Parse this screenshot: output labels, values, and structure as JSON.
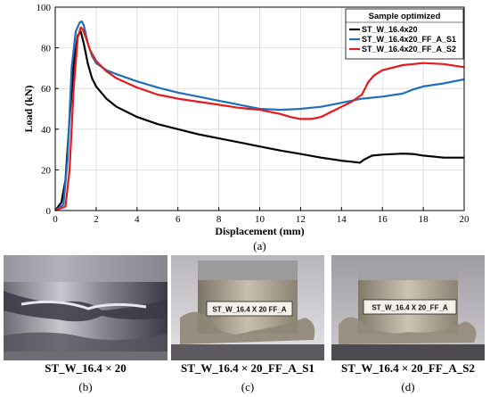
{
  "chart_data": {
    "type": "line",
    "title": "",
    "xlabel": "Displacement (mm)",
    "ylabel": "Load (kN)",
    "xlim": [
      0,
      20
    ],
    "ylim": [
      0,
      100
    ],
    "xticks": [
      "0",
      "2",
      "4",
      "6",
      "8",
      "10",
      "12",
      "14",
      "16",
      "18",
      "20"
    ],
    "yticks": [
      "0",
      "20",
      "40",
      "60",
      "80",
      "100"
    ],
    "grid": true,
    "legend": {
      "title": "Sample optimized",
      "placement": "top-right"
    },
    "series": [
      {
        "name": "ST_W_16.4x20",
        "color": "#000000",
        "x": [
          0,
          0.3,
          0.5,
          0.7,
          0.9,
          1.1,
          1.25,
          1.4,
          1.6,
          1.8,
          2.0,
          2.5,
          3,
          4,
          5,
          6,
          7,
          8,
          9,
          10,
          11,
          12,
          13,
          14,
          14.5,
          14.9,
          15.1,
          15.5,
          16,
          17,
          17.5,
          18,
          19,
          20
        ],
        "y": [
          0,
          4,
          15,
          45,
          72,
          86,
          88,
          82,
          72,
          65,
          61,
          55,
          51,
          46,
          42.5,
          40,
          37.5,
          35.5,
          33.5,
          31.5,
          29.5,
          27.8,
          26,
          24.5,
          24,
          23.5,
          25,
          27,
          27.5,
          28,
          27.8,
          27,
          26,
          26
        ]
      },
      {
        "name": "ST_W_16.4x20_FF_A_S1",
        "color": "#1f6fbf",
        "x": [
          0,
          0.4,
          0.6,
          0.8,
          1.0,
          1.2,
          1.3,
          1.4,
          1.6,
          1.8,
          2.0,
          2.5,
          3,
          4,
          5,
          6,
          7,
          8,
          9,
          10,
          11,
          12,
          13,
          14,
          15,
          16,
          17,
          17.5,
          18,
          19,
          20
        ],
        "y": [
          0,
          3,
          25,
          70,
          88,
          92.5,
          93,
          91,
          82,
          76,
          72.5,
          69,
          67,
          63.5,
          60.5,
          58,
          56,
          54,
          52,
          50,
          49.5,
          50,
          51,
          53,
          55,
          56,
          57.5,
          59.5,
          61,
          62.5,
          64.5
        ]
      },
      {
        "name": "ST_W_16.4x20_FF_A_S2",
        "color": "#e41a1c",
        "x": [
          0,
          0.5,
          0.7,
          0.9,
          1.1,
          1.25,
          1.35,
          1.5,
          1.7,
          2.0,
          2.5,
          3,
          4,
          5,
          6,
          7,
          8,
          9,
          10,
          11,
          11.5,
          12,
          12.5,
          13,
          13.5,
          14,
          14.5,
          15,
          15.3,
          15.6,
          16,
          17,
          18,
          19,
          20
        ],
        "y": [
          0,
          2,
          20,
          60,
          85,
          90,
          89,
          85,
          79,
          73.5,
          68.5,
          65,
          60.5,
          57,
          55,
          53.5,
          52,
          50.5,
          49.5,
          47.5,
          46,
          45,
          45,
          46,
          48.5,
          51,
          53.5,
          57,
          63,
          66.5,
          69,
          71.5,
          72.5,
          72,
          70.5
        ]
      }
    ]
  },
  "panel_label_a": "(a)",
  "photos": [
    {
      "caption": "ST_W_16.4 × 20",
      "label": "(b)",
      "sample_label": ""
    },
    {
      "caption": "ST_W_16.4 × 20_FF_A_S1",
      "label": "(c)",
      "sample_label": "ST_W_16.4 X 20 FF_A"
    },
    {
      "caption": "ST_W_16.4 × 20_FF_A_S2",
      "label": "(d)",
      "sample_label": "ST_W_16.4 X 20_FF_A"
    }
  ]
}
